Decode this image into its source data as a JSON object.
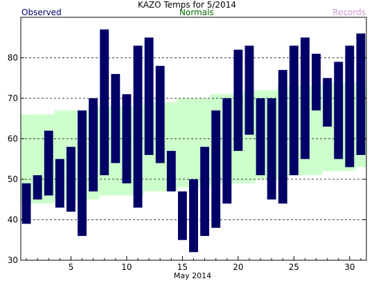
{
  "chart_data": {
    "type": "bar",
    "title": "KAZO Temps for 5/2014",
    "xlabel": "May 2014",
    "ylabel": "",
    "legend": {
      "observed": "Observed",
      "normals": "Normals",
      "records": "Records"
    },
    "colors": {
      "observed": "#000066",
      "normals": "#ccffcc",
      "normals_label": "#006600",
      "records_label": "#cc99cc",
      "grid": "#000000"
    },
    "xlim": [
      1,
      31
    ],
    "ylim": [
      30,
      90
    ],
    "x_ticks": [
      5,
      10,
      15,
      20,
      25,
      30
    ],
    "y_ticks": [
      30,
      40,
      50,
      60,
      70,
      80
    ],
    "grid": "dashed horizontal",
    "days": [
      1,
      2,
      3,
      4,
      5,
      6,
      7,
      8,
      9,
      10,
      11,
      12,
      13,
      14,
      15,
      16,
      17,
      18,
      19,
      20,
      21,
      22,
      23,
      24,
      25,
      26,
      27,
      28,
      29,
      30,
      31
    ],
    "observed_high": [
      49,
      51,
      62,
      55,
      58,
      67,
      70,
      87,
      76,
      71,
      83,
      85,
      78,
      57,
      47,
      50,
      58,
      67,
      70,
      82,
      83,
      70,
      70,
      77,
      83,
      85,
      81,
      75,
      79,
      83,
      86
    ],
    "observed_low": [
      39,
      45,
      46,
      43,
      42,
      36,
      47,
      51,
      54,
      49,
      43,
      56,
      54,
      47,
      35,
      32,
      36,
      38,
      44,
      57,
      61,
      51,
      45,
      44,
      51,
      55,
      67,
      63,
      55,
      53,
      56
    ],
    "normal_high": [
      66,
      66,
      66,
      67,
      67,
      67,
      68,
      68,
      68,
      68,
      68,
      69,
      69,
      69,
      70,
      70,
      70,
      71,
      71,
      71,
      72,
      72,
      72,
      73,
      73,
      73,
      73,
      74,
      74,
      74,
      74
    ],
    "normal_low": [
      44,
      44,
      44,
      45,
      45,
      45,
      45,
      46,
      46,
      46,
      46,
      47,
      47,
      47,
      48,
      48,
      48,
      49,
      49,
      49,
      49,
      50,
      50,
      50,
      51,
      51,
      51,
      52,
      52,
      52,
      53
    ]
  }
}
